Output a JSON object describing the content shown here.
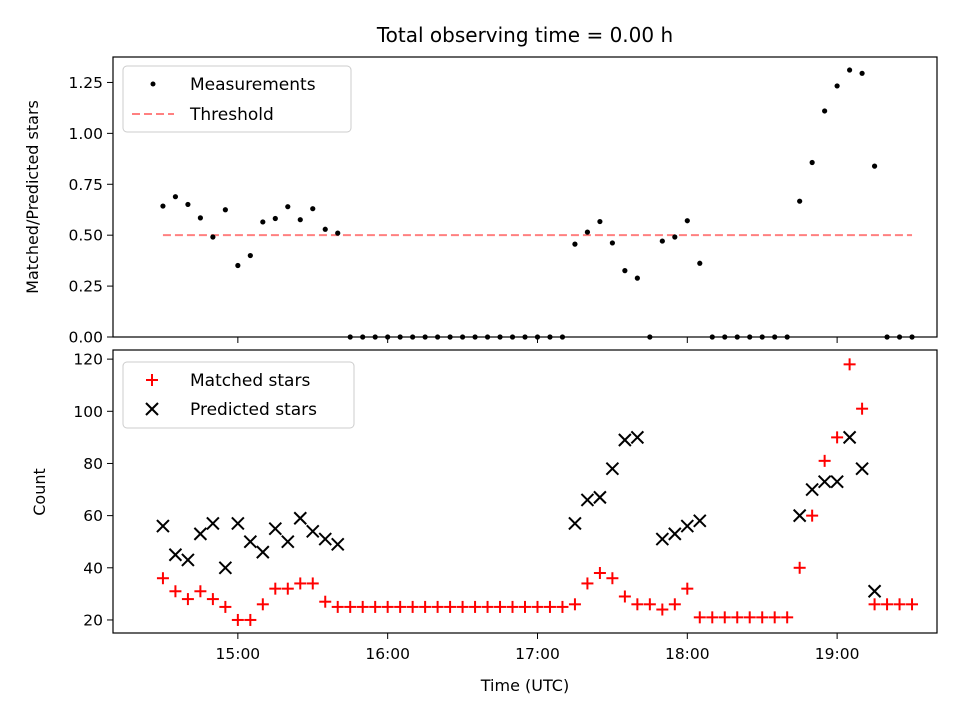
{
  "chart_data": [
    {
      "type": "scatter",
      "title": "Total observing time = 0.00 h",
      "xlabel": "",
      "ylabel": "Matched/Predicted stars",
      "ylim": [
        0,
        1.375
      ],
      "yticks": [
        "0.00",
        "0.25",
        "0.50",
        "0.75",
        "1.00",
        "1.25"
      ],
      "yticks_values": [
        0,
        0.25,
        0.5,
        0.75,
        1.0,
        1.25
      ],
      "legend_position": "top-left",
      "series": [
        {
          "name": "Measurements",
          "color": "#000000",
          "marker": "dot",
          "points": [
            [
              "14:30",
              0.643
            ],
            [
              "14:35",
              0.689
            ],
            [
              "14:40",
              0.651
            ],
            [
              "14:45",
              0.585
            ],
            [
              "14:50",
              0.491
            ],
            [
              "14:55",
              0.625
            ],
            [
              "15:00",
              0.351
            ],
            [
              "15:05",
              0.4
            ],
            [
              "15:10",
              0.565
            ],
            [
              "15:15",
              0.582
            ],
            [
              "15:20",
              0.64
            ],
            [
              "15:25",
              0.576
            ],
            [
              "15:30",
              0.63
            ],
            [
              "15:35",
              0.529
            ],
            [
              "15:40",
              0.51
            ],
            [
              "15:45",
              0.0
            ],
            [
              "15:50",
              0.0
            ],
            [
              "15:55",
              0.0
            ],
            [
              "16:00",
              0.0
            ],
            [
              "16:05",
              0.0
            ],
            [
              "16:10",
              0.0
            ],
            [
              "16:15",
              0.0
            ],
            [
              "16:20",
              0.0
            ],
            [
              "16:25",
              0.0
            ],
            [
              "16:30",
              0.0
            ],
            [
              "16:35",
              0.0
            ],
            [
              "16:40",
              0.0
            ],
            [
              "16:45",
              0.0
            ],
            [
              "16:50",
              0.0
            ],
            [
              "16:55",
              0.0
            ],
            [
              "17:00",
              0.0
            ],
            [
              "17:05",
              0.0
            ],
            [
              "17:10",
              0.0
            ],
            [
              "17:15",
              0.456
            ],
            [
              "17:20",
              0.515
            ],
            [
              "17:25",
              0.567
            ],
            [
              "17:30",
              0.462
            ],
            [
              "17:35",
              0.326
            ],
            [
              "17:40",
              0.289
            ],
            [
              "17:45",
              0.0
            ],
            [
              "17:50",
              0.471
            ],
            [
              "17:55",
              0.491
            ],
            [
              "18:00",
              0.571
            ],
            [
              "18:05",
              0.362
            ],
            [
              "18:10",
              0.0
            ],
            [
              "18:15",
              0.0
            ],
            [
              "18:20",
              0.0
            ],
            [
              "18:25",
              0.0
            ],
            [
              "18:30",
              0.0
            ],
            [
              "18:35",
              0.0
            ],
            [
              "18:40",
              0.0
            ],
            [
              "18:45",
              0.667
            ],
            [
              "18:50",
              0.857
            ],
            [
              "18:55",
              1.11
            ],
            [
              "19:00",
              1.233
            ],
            [
              "19:05",
              1.311
            ],
            [
              "19:10",
              1.295
            ],
            [
              "19:15",
              0.839
            ],
            [
              "19:20",
              0.0
            ],
            [
              "19:25",
              0.0
            ],
            [
              "19:30",
              0.0
            ]
          ]
        },
        {
          "name": "Threshold",
          "color": "#ff8080",
          "style": "dashed",
          "points": [
            [
              "14:30",
              0.5
            ],
            [
              "19:30",
              0.5
            ]
          ]
        }
      ]
    },
    {
      "type": "scatter",
      "title": "",
      "xlabel": "Time (UTC)",
      "ylabel": "Count",
      "ylim": [
        15,
        123.5
      ],
      "yticks": [
        "20",
        "40",
        "60",
        "80",
        "100",
        "120"
      ],
      "yticks_values": [
        20,
        40,
        60,
        80,
        100,
        120
      ],
      "xticks": [
        "15:00",
        "16:00",
        "17:00",
        "18:00",
        "19:00"
      ],
      "xlim": [
        "14:10",
        "19:40"
      ],
      "legend_position": "top-left",
      "series": [
        {
          "name": "Matched stars",
          "color": "#ff0000",
          "marker": "plus",
          "points": [
            [
              "14:30",
              36
            ],
            [
              "14:35",
              31
            ],
            [
              "14:40",
              28
            ],
            [
              "14:45",
              31
            ],
            [
              "14:50",
              28
            ],
            [
              "14:55",
              25
            ],
            [
              "15:00",
              20
            ],
            [
              "15:05",
              20
            ],
            [
              "15:10",
              26
            ],
            [
              "15:15",
              32
            ],
            [
              "15:20",
              32
            ],
            [
              "15:25",
              34
            ],
            [
              "15:30",
              34
            ],
            [
              "15:35",
              27
            ],
            [
              "15:40",
              25
            ],
            [
              "15:45",
              25
            ],
            [
              "15:50",
              25
            ],
            [
              "15:55",
              25
            ],
            [
              "16:00",
              25
            ],
            [
              "16:05",
              25
            ],
            [
              "16:10",
              25
            ],
            [
              "16:15",
              25
            ],
            [
              "16:20",
              25
            ],
            [
              "16:25",
              25
            ],
            [
              "16:30",
              25
            ],
            [
              "16:35",
              25
            ],
            [
              "16:40",
              25
            ],
            [
              "16:45",
              25
            ],
            [
              "16:50",
              25
            ],
            [
              "16:55",
              25
            ],
            [
              "17:00",
              25
            ],
            [
              "17:05",
              25
            ],
            [
              "17:10",
              25
            ],
            [
              "17:15",
              26
            ],
            [
              "17:20",
              34
            ],
            [
              "17:25",
              38
            ],
            [
              "17:30",
              36
            ],
            [
              "17:35",
              29
            ],
            [
              "17:40",
              26
            ],
            [
              "17:45",
              26
            ],
            [
              "17:50",
              24
            ],
            [
              "17:55",
              26
            ],
            [
              "18:00",
              32
            ],
            [
              "18:05",
              21
            ],
            [
              "18:10",
              21
            ],
            [
              "18:15",
              21
            ],
            [
              "18:20",
              21
            ],
            [
              "18:25",
              21
            ],
            [
              "18:30",
              21
            ],
            [
              "18:35",
              21
            ],
            [
              "18:40",
              21
            ],
            [
              "18:45",
              40
            ],
            [
              "18:50",
              60
            ],
            [
              "18:55",
              81
            ],
            [
              "19:00",
              90
            ],
            [
              "19:05",
              118
            ],
            [
              "19:10",
              101
            ],
            [
              "19:15",
              26
            ],
            [
              "19:20",
              26
            ],
            [
              "19:25",
              26
            ],
            [
              "19:30",
              26
            ]
          ]
        },
        {
          "name": "Predicted stars",
          "color": "#000000",
          "marker": "x",
          "points": [
            [
              "14:30",
              56
            ],
            [
              "14:35",
              45
            ],
            [
              "14:40",
              43
            ],
            [
              "14:45",
              53
            ],
            [
              "14:50",
              57
            ],
            [
              "14:55",
              40
            ],
            [
              "15:00",
              57
            ],
            [
              "15:05",
              50
            ],
            [
              "15:10",
              46
            ],
            [
              "15:15",
              55
            ],
            [
              "15:20",
              50
            ],
            [
              "15:25",
              59
            ],
            [
              "15:30",
              54
            ],
            [
              "15:35",
              51
            ],
            [
              "15:40",
              49
            ],
            [
              "17:15",
              57
            ],
            [
              "17:20",
              66
            ],
            [
              "17:25",
              67
            ],
            [
              "17:30",
              78
            ],
            [
              "17:35",
              89
            ],
            [
              "17:40",
              90
            ],
            [
              "17:50",
              51
            ],
            [
              "17:55",
              53
            ],
            [
              "18:00",
              56
            ],
            [
              "18:05",
              58
            ],
            [
              "18:45",
              60
            ],
            [
              "18:50",
              70
            ],
            [
              "18:55",
              73
            ],
            [
              "19:00",
              73
            ],
            [
              "19:05",
              90
            ],
            [
              "19:10",
              78
            ],
            [
              "19:15",
              31
            ]
          ]
        }
      ]
    }
  ]
}
